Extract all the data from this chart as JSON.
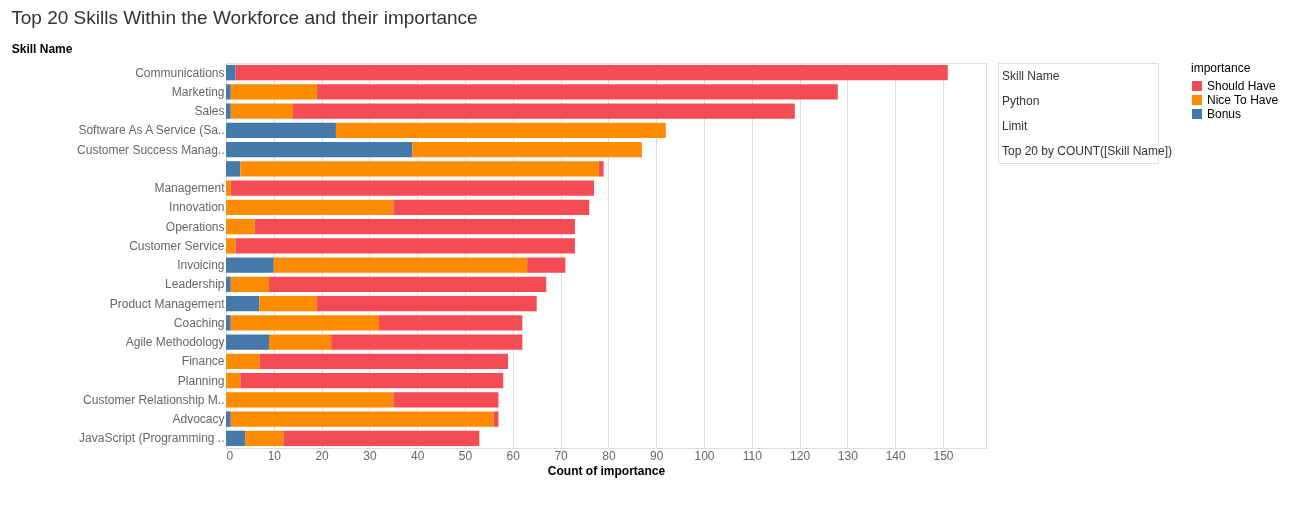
{
  "chart_data": {
    "type": "bar",
    "orientation": "horizontal",
    "stacked": true,
    "title": "Top 20 Skills Within the Workforce and their importance",
    "ylabel": "Skill Name",
    "xlabel": "Count of importance",
    "legend_title": "importance",
    "categories": [
      "Communications",
      "Marketing",
      "Sales",
      "Software As A Service (Sa..",
      "Customer Success Manag..",
      null,
      "Management",
      "Innovation",
      "Operations",
      "Customer Service",
      "Invoicing",
      "Leadership",
      "Product Management",
      "Coaching",
      "Agile Methodology",
      "Finance",
      "Planning",
      "Customer Relationship M..",
      "Advocacy",
      "JavaScript (Programming .."
    ],
    "series": [
      {
        "name": "Bonus",
        "color": "#4479aa",
        "values": [
          2,
          1,
          1,
          23,
          39,
          3,
          0,
          0,
          0,
          0,
          10,
          1,
          7,
          1,
          9,
          0,
          0,
          0,
          1,
          4
        ]
      },
      {
        "name": "Nice To Have",
        "color": "#ff8b00",
        "values": [
          0,
          18,
          13,
          69,
          48,
          75,
          1,
          35,
          6,
          2,
          53,
          8,
          12,
          31,
          13,
          7,
          3,
          35,
          55,
          8
        ]
      },
      {
        "name": "Should Have",
        "color": "#f44c55",
        "values": [
          149,
          109,
          105,
          0,
          0,
          1,
          76,
          41,
          67,
          71,
          8,
          58,
          46,
          30,
          40,
          52,
          55,
          22,
          1,
          41
        ]
      }
    ],
    "xlim": [
      0,
      159
    ],
    "xticks": [
      0,
      10,
      20,
      30,
      40,
      50,
      60,
      70,
      80,
      90,
      100,
      110,
      120,
      130,
      140,
      150
    ],
    "grid": "x",
    "legend": "right",
    "annotations": [
      "Skill Name",
      "Python",
      "Limit",
      "Top 20 by COUNT([Skill Name])"
    ]
  }
}
